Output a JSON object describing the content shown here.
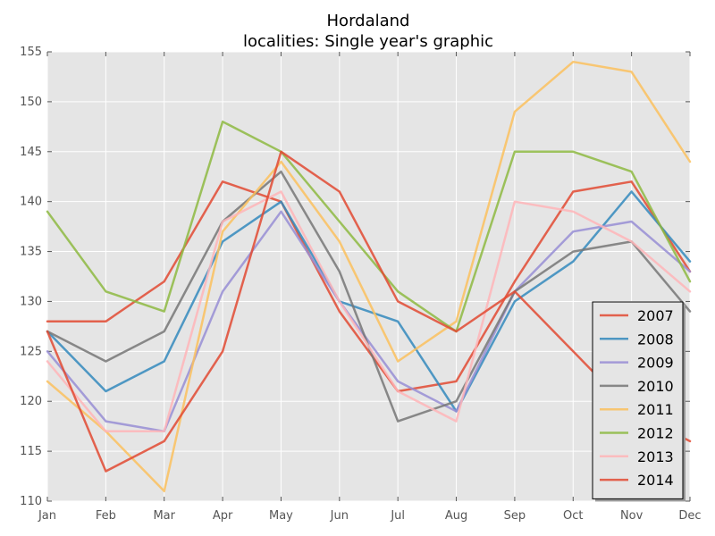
{
  "chart_data": {
    "type": "line",
    "title": "Hordaland",
    "subtitle": "localities: Single year's graphic",
    "xlabel": "",
    "ylabel": "",
    "categories": [
      "Jan",
      "Feb",
      "Mar",
      "Apr",
      "May",
      "Jun",
      "Jul",
      "Aug",
      "Sep",
      "Oct",
      "Nov",
      "Dec"
    ],
    "ylim": [
      110,
      155
    ],
    "yticks": [
      110,
      115,
      120,
      125,
      130,
      135,
      140,
      145,
      150,
      155
    ],
    "grid": true,
    "legend_position": "bottom-right",
    "series": [
      {
        "name": "2007",
        "color": "#E24A33",
        "values": [
          128,
          128,
          132,
          142,
          140,
          129,
          121,
          122,
          132,
          141,
          142,
          133
        ]
      },
      {
        "name": "2008",
        "color": "#348ABD",
        "values": [
          127,
          121,
          124,
          136,
          140,
          130,
          128,
          119,
          130,
          134,
          141,
          134
        ]
      },
      {
        "name": "2009",
        "color": "#988ED5",
        "values": [
          125,
          118,
          117,
          131,
          139,
          130,
          122,
          119,
          131,
          137,
          138,
          133
        ]
      },
      {
        "name": "2010",
        "color": "#777777",
        "values": [
          127,
          124,
          127,
          138,
          143,
          133,
          118,
          120,
          131,
          135,
          136,
          129
        ]
      },
      {
        "name": "2011",
        "color": "#FBC15E",
        "values": [
          122,
          117,
          111,
          137,
          144,
          136,
          124,
          128,
          149,
          154,
          153,
          144
        ]
      },
      {
        "name": "2012",
        "color": "#8EBA42",
        "values": [
          139,
          131,
          129,
          148,
          145,
          138,
          131,
          127,
          145,
          145,
          143,
          132
        ]
      },
      {
        "name": "2013",
        "color": "#FFB5B8",
        "values": [
          124,
          117,
          117,
          138,
          141,
          130,
          121,
          118,
          140,
          139,
          136,
          131
        ]
      },
      {
        "name": "2014",
        "color": "#E24A33",
        "values": [
          127,
          113,
          116,
          125,
          145,
          141,
          130,
          127,
          131,
          125,
          119,
          116
        ]
      }
    ]
  }
}
